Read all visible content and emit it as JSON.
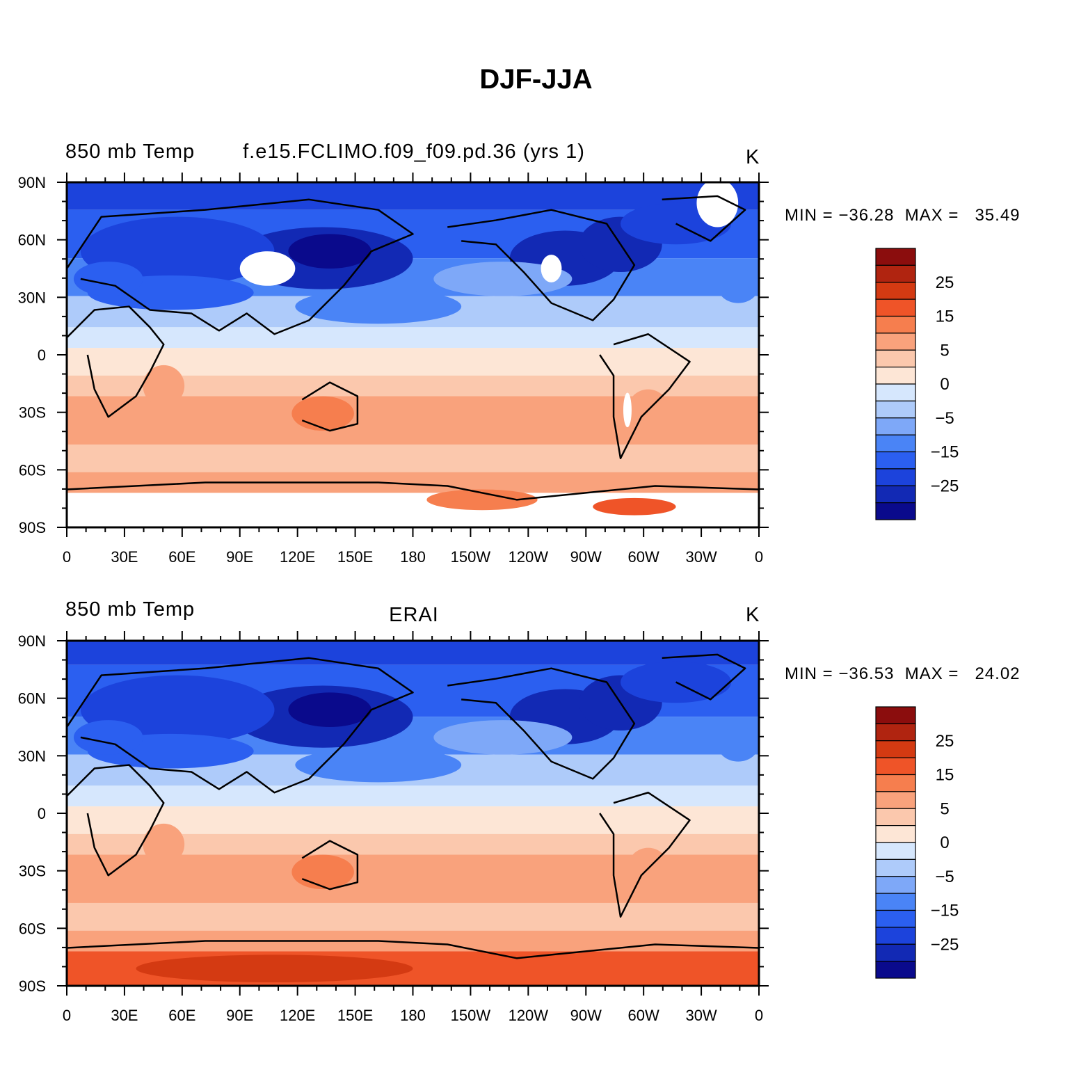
{
  "figure": {
    "title": "DJF-JJA"
  },
  "colorbar": {
    "colors": [
      "#0a0a8c",
      "#1229b4",
      "#1c43dc",
      "#2b5ff0",
      "#4a84f6",
      "#7ea8f8",
      "#aecbfa",
      "#d6e7fd",
      "#fde6d6",
      "#fbc8ad",
      "#f9a27c",
      "#f67e4e",
      "#ef5428",
      "#d43a12",
      "#b02410",
      "#8b0d0d"
    ],
    "labels": [
      {
        "index": 1,
        "text": "25"
      },
      {
        "index": 3,
        "text": "15"
      },
      {
        "index": 5,
        "text": "5"
      },
      {
        "index": 7,
        "text": "0"
      },
      {
        "index": 9,
        "text": "−5"
      },
      {
        "index": 11,
        "text": "−15"
      },
      {
        "index": 13,
        "text": "−25"
      }
    ]
  },
  "axes": {
    "lon_ticks": [
      "0",
      "30E",
      "60E",
      "90E",
      "120E",
      "150E",
      "180",
      "150W",
      "120W",
      "90W",
      "60W",
      "30W",
      "0"
    ],
    "lat_ticks": [
      "90N",
      "60N",
      "30N",
      "0",
      "30S",
      "60S",
      "90S"
    ]
  },
  "panels": [
    {
      "left_label": "850 mb Temp",
      "center_label": "f.e15.FCLIMO.f09_f09.pd.36 (yrs 1)",
      "units": "K",
      "min_max": "MIN = −36.28  MAX =   35.49"
    },
    {
      "left_label": "850 mb Temp",
      "center_label": "ERAI",
      "units": "K",
      "min_max": "MIN = −36.53  MAX =   24.02"
    }
  ]
}
